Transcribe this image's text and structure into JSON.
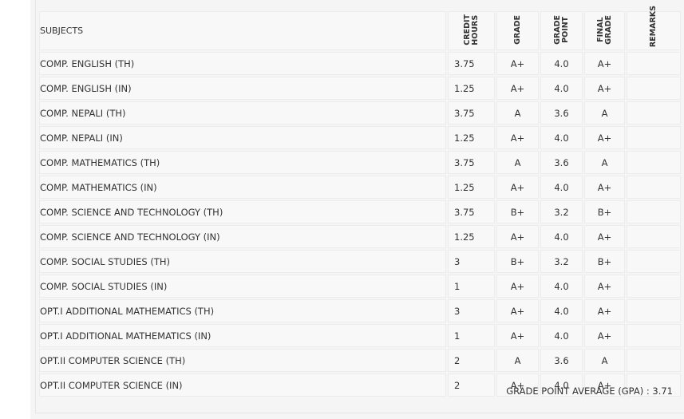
{
  "headers": {
    "subjects": "SUBJECTS",
    "credit_hours": "CREDIT\nHOURS",
    "grade": "GRADE",
    "grade_point": "GRADE\nPOINT",
    "final_grade": "FINAL\nGRADE",
    "remarks": "REMARKS"
  },
  "rows": [
    {
      "subject": "COMP. ENGLISH (TH)",
      "credit": "3.75",
      "grade": "A+",
      "point": "4.0",
      "final": "A+"
    },
    {
      "subject": "COMP. ENGLISH (IN)",
      "credit": "1.25",
      "grade": "A+",
      "point": "4.0",
      "final": "A+"
    },
    {
      "subject": "COMP. NEPALI (TH)",
      "credit": "3.75",
      "grade": "A",
      "point": "3.6",
      "final": "A"
    },
    {
      "subject": "COMP. NEPALI (IN)",
      "credit": "1.25",
      "grade": "A+",
      "point": "4.0",
      "final": "A+"
    },
    {
      "subject": "COMP. MATHEMATICS (TH)",
      "credit": "3.75",
      "grade": "A",
      "point": "3.6",
      "final": "A"
    },
    {
      "subject": "COMP. MATHEMATICS (IN)",
      "credit": "1.25",
      "grade": "A+",
      "point": "4.0",
      "final": "A+"
    },
    {
      "subject": "COMP. SCIENCE AND TECHNOLOGY (TH)",
      "credit": "3.75",
      "grade": "B+",
      "point": "3.2",
      "final": "B+"
    },
    {
      "subject": "COMP. SCIENCE AND TECHNOLOGY (IN)",
      "credit": "1.25",
      "grade": "A+",
      "point": "4.0",
      "final": "A+"
    },
    {
      "subject": "COMP. SOCIAL STUDIES (TH)",
      "credit": "3",
      "grade": "B+",
      "point": "3.2",
      "final": "B+"
    },
    {
      "subject": "COMP. SOCIAL STUDIES (IN)",
      "credit": "1",
      "grade": "A+",
      "point": "4.0",
      "final": "A+"
    },
    {
      "subject": "OPT.I ADDITIONAL MATHEMATICS (TH)",
      "credit": "3",
      "grade": "A+",
      "point": "4.0",
      "final": "A+"
    },
    {
      "subject": "OPT.I ADDITIONAL MATHEMATICS (IN)",
      "credit": "1",
      "grade": "A+",
      "point": "4.0",
      "final": "A+"
    },
    {
      "subject": "OPT.II COMPUTER SCIENCE (TH)",
      "credit": "2",
      "grade": "A",
      "point": "3.6",
      "final": "A"
    },
    {
      "subject": "OPT.II COMPUTER SCIENCE (IN)",
      "credit": "2",
      "grade": "A+",
      "point": "4.0",
      "final": "A+"
    }
  ],
  "gpa": {
    "label": "GRADE POINT AVERAGE (GPA) :",
    "value": "3.71"
  }
}
